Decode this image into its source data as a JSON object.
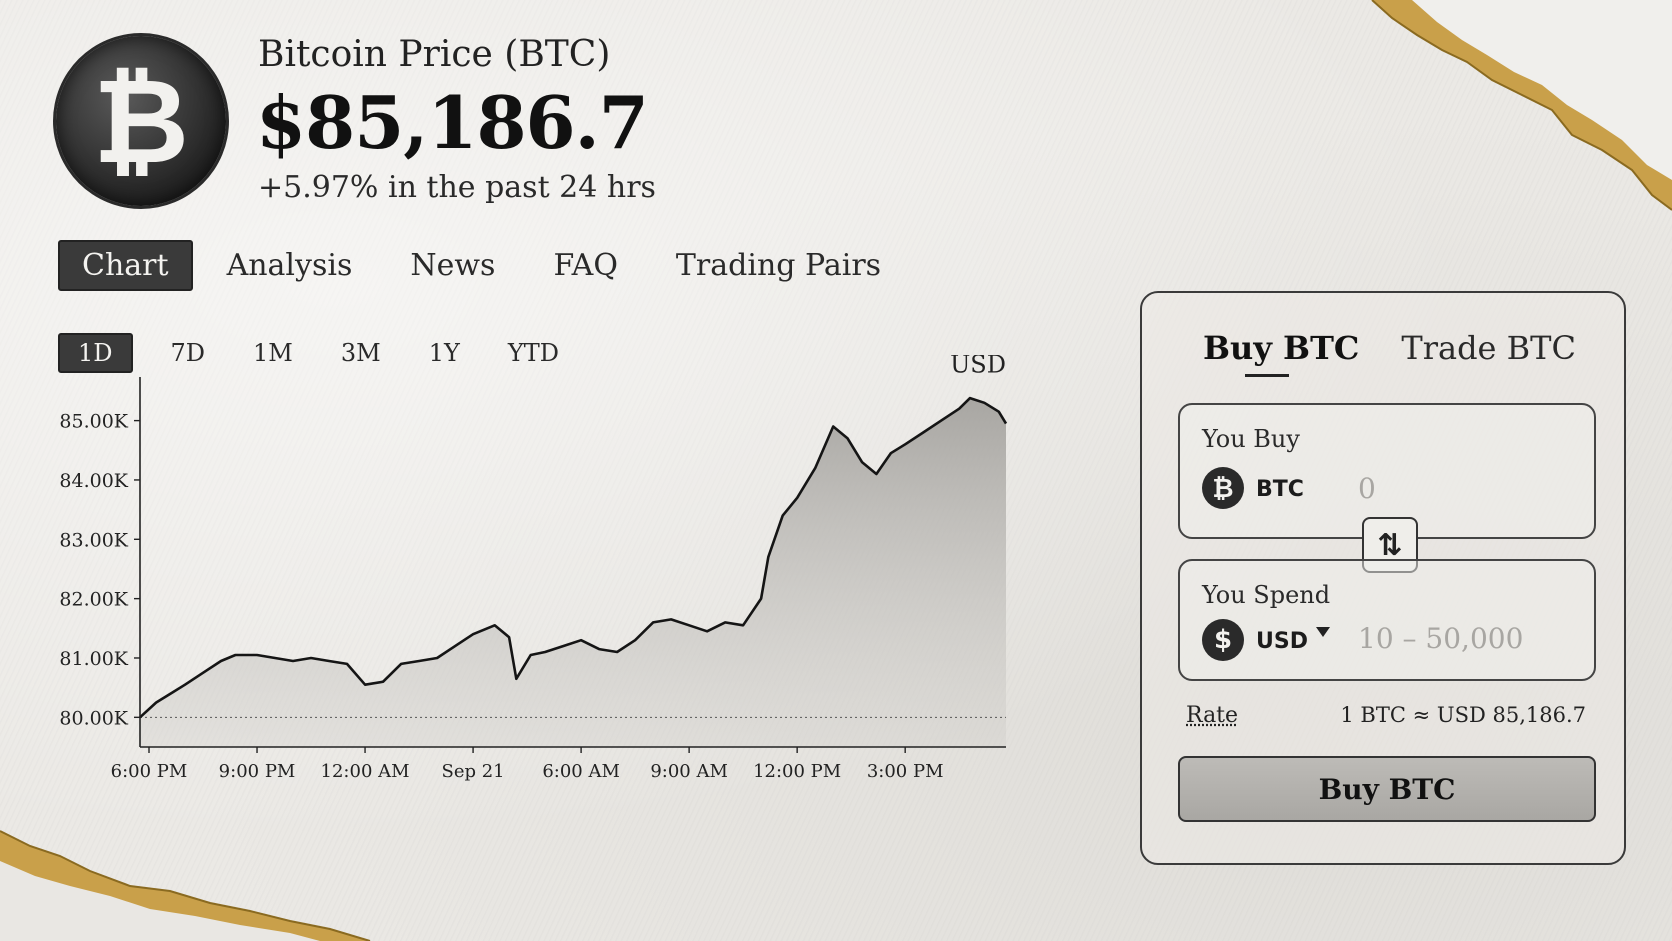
{
  "header": {
    "coin_symbol": "₿",
    "title": "Bitcoin Price (BTC)",
    "price": "$85,186.7",
    "change": "+5.97% in the past 24 hrs"
  },
  "tabs": [
    {
      "label": "Chart",
      "active": true
    },
    {
      "label": "Analysis",
      "active": false
    },
    {
      "label": "News",
      "active": false
    },
    {
      "label": "FAQ",
      "active": false
    },
    {
      "label": "Trading Pairs",
      "active": false
    }
  ],
  "ranges": [
    {
      "label": "1D",
      "active": true
    },
    {
      "label": "7D",
      "active": false
    },
    {
      "label": "1M",
      "active": false
    },
    {
      "label": "3M",
      "active": false
    },
    {
      "label": "1Y",
      "active": false
    },
    {
      "label": "YTD",
      "active": false
    }
  ],
  "chart_data": {
    "type": "area",
    "currency_label": "USD",
    "ylim": [
      79500,
      85600
    ],
    "yticks": [
      80000,
      81000,
      82000,
      83000,
      84000,
      85000
    ],
    "ytick_labels": [
      "80.00K",
      "81.00K",
      "82.00K",
      "83.00K",
      "84.00K",
      "85.00K"
    ],
    "xlim": [
      -0.25,
      23.8
    ],
    "xticks": [
      0,
      3,
      6,
      9,
      12,
      15,
      18,
      21
    ],
    "xtick_labels": [
      "6:00 PM",
      "9:00 PM",
      "12:00 AM",
      "Sep 21",
      "6:00 AM",
      "9:00 AM",
      "12:00 PM",
      "3:00 PM"
    ],
    "baseline": 80000,
    "grid": false,
    "series": [
      {
        "values": [
          [
            -0.25,
            80000
          ],
          [
            0.2,
            80250
          ],
          [
            0.6,
            80400
          ],
          [
            1.0,
            80550
          ],
          [
            1.5,
            80750
          ],
          [
            2.0,
            80950
          ],
          [
            2.4,
            81050
          ],
          [
            3.0,
            81050
          ],
          [
            3.5,
            81000
          ],
          [
            4.0,
            80950
          ],
          [
            4.5,
            81000
          ],
          [
            5.0,
            80950
          ],
          [
            5.5,
            80900
          ],
          [
            6.0,
            80550
          ],
          [
            6.5,
            80600
          ],
          [
            7.0,
            80900
          ],
          [
            7.5,
            80950
          ],
          [
            8.0,
            81000
          ],
          [
            8.5,
            81200
          ],
          [
            9.0,
            81400
          ],
          [
            9.6,
            81550
          ],
          [
            10.0,
            81350
          ],
          [
            10.2,
            80650
          ],
          [
            10.6,
            81050
          ],
          [
            11.0,
            81100
          ],
          [
            11.5,
            81200
          ],
          [
            12.0,
            81300
          ],
          [
            12.5,
            81150
          ],
          [
            13.0,
            81100
          ],
          [
            13.5,
            81300
          ],
          [
            14.0,
            81600
          ],
          [
            14.5,
            81650
          ],
          [
            15.0,
            81550
          ],
          [
            15.5,
            81450
          ],
          [
            16.0,
            81600
          ],
          [
            16.5,
            81550
          ],
          [
            17.0,
            82000
          ],
          [
            17.2,
            82700
          ],
          [
            17.6,
            83400
          ],
          [
            18.0,
            83700
          ],
          [
            18.5,
            84200
          ],
          [
            19.0,
            84900
          ],
          [
            19.4,
            84700
          ],
          [
            19.8,
            84300
          ],
          [
            20.2,
            84100
          ],
          [
            20.6,
            84450
          ],
          [
            21.0,
            84600
          ],
          [
            21.5,
            84800
          ],
          [
            22.0,
            85000
          ],
          [
            22.5,
            85200
          ],
          [
            22.8,
            85380
          ],
          [
            23.2,
            85300
          ],
          [
            23.6,
            85150
          ],
          [
            23.8,
            84950
          ]
        ]
      }
    ]
  },
  "trade": {
    "tab_buy": "Buy BTC",
    "tab_trade": "Trade BTC",
    "you_buy_label": "You Buy",
    "buy_currency": "BTC",
    "buy_currency_symbol": "₿",
    "buy_amount_placeholder": "0",
    "you_spend_label": "You Spend",
    "spend_currency": "USD",
    "spend_currency_symbol": "$",
    "spend_amount_placeholder": "10 – 50,000",
    "swap_symbol": "⇅",
    "rate_label": "Rate",
    "rate_value": "1 BTC ≈ USD 85,186.7",
    "buy_button": "Buy BTC"
  }
}
